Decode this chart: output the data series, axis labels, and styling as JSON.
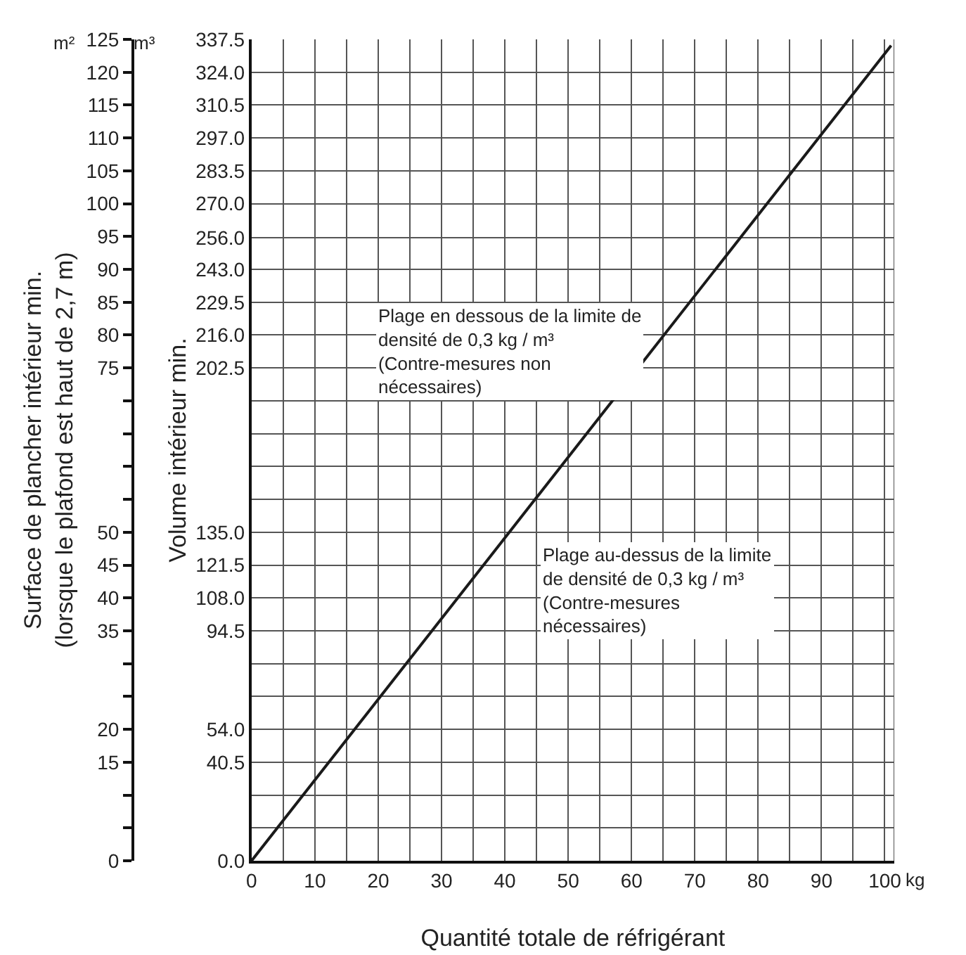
{
  "chart_data": {
    "type": "line",
    "xlabel": "Quantité totale de réfrigérant",
    "ylabel": "Volume intérieur min.",
    "y2label": "Surface de plancher intérieur min.\n(lorsque le plafond est haut de 2,7 m)",
    "x": [
      0,
      101
    ],
    "series": [
      {
        "color": "#1a1a1a",
        "values": [
          0,
          335
        ]
      }
    ],
    "xlim": [
      0,
      101.5
    ],
    "xticks": [
      0,
      10,
      20,
      30,
      40,
      50,
      60,
      70,
      80,
      90,
      100
    ],
    "ylim": [
      0,
      337.5
    ],
    "yticks": [
      {
        "value": 0,
        "label": "0.0"
      },
      {
        "value": 13.5,
        "label": null
      },
      {
        "value": 27,
        "label": null
      },
      40.5,
      {
        "value": 54,
        "label": "54.0"
      },
      {
        "value": 67.5,
        "label": null
      },
      {
        "value": 81,
        "label": null
      },
      94.5,
      {
        "value": 108,
        "label": "108.0"
      },
      121.5,
      {
        "value": 135,
        "label": "135.0"
      },
      {
        "value": 148.5,
        "label": null
      },
      {
        "value": 162,
        "label": null
      },
      {
        "value": 175.5,
        "label": null
      },
      {
        "value": 189,
        "label": null
      },
      202.5,
      {
        "value": 216,
        "label": "216.0"
      },
      229.5,
      {
        "value": 243,
        "label": "243.0"
      },
      {
        "value": 256,
        "label": "256.0"
      },
      {
        "value": 270,
        "label": "270.0"
      },
      283.5,
      {
        "value": 297,
        "label": "297.0"
      },
      310.5,
      {
        "value": 324,
        "label": "324.0"
      },
      337.5
    ],
    "y2lim": [
      0,
      125
    ],
    "y2ticks": [
      0,
      {
        "value": 5,
        "label": null
      },
      {
        "value": 10,
        "label": null
      },
      15,
      20,
      {
        "value": 25,
        "label": null
      },
      {
        "value": 30,
        "label": null
      },
      35,
      40,
      45,
      50,
      {
        "value": 55,
        "label": null
      },
      {
        "value": 60,
        "label": null
      },
      {
        "value": 65,
        "label": null
      },
      {
        "value": 70,
        "label": null
      },
      75,
      80,
      85,
      90,
      95,
      100,
      105,
      110,
      115,
      120,
      125
    ],
    "grid": true,
    "line_style": "solid",
    "marker": "none",
    "annotations": [
      "Plage en dessous de la limite de\ndensité de 0,3 kg / m³\n(Contre-mesures non\nnécessaires)",
      "Plage au-dessus de la limite\nde densité de 0,3 kg / m³\n(Contre-mesures\nnécessaires)",
      "m²",
      "m³",
      "kg"
    ]
  }
}
